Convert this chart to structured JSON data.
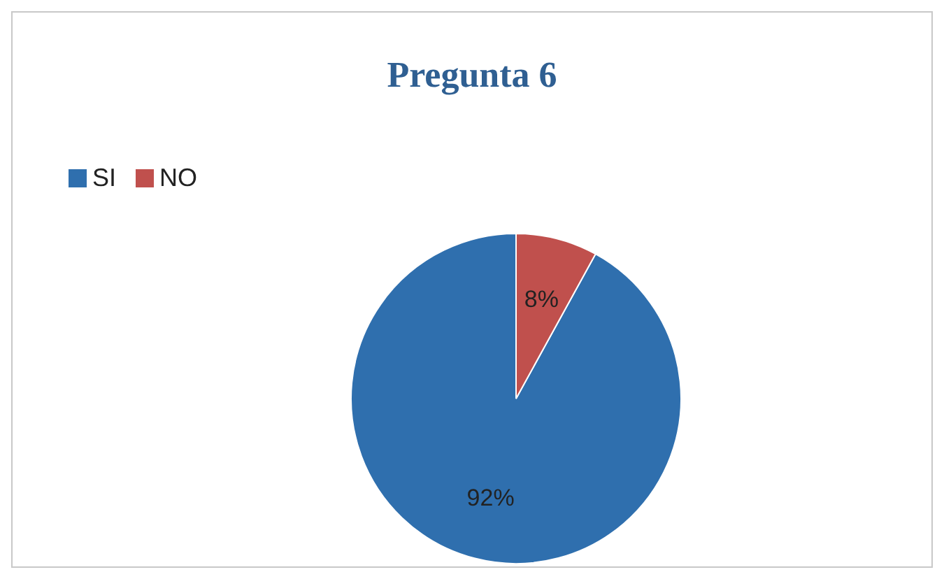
{
  "chart_data": {
    "type": "pie",
    "title": "Pregunta 6",
    "categories": [
      "SI",
      "NO"
    ],
    "values": [
      92,
      8
    ],
    "colors": [
      "#2f6fae",
      "#c0504d"
    ],
    "value_labels": [
      "92%",
      "8%"
    ],
    "legend": "top left"
  }
}
